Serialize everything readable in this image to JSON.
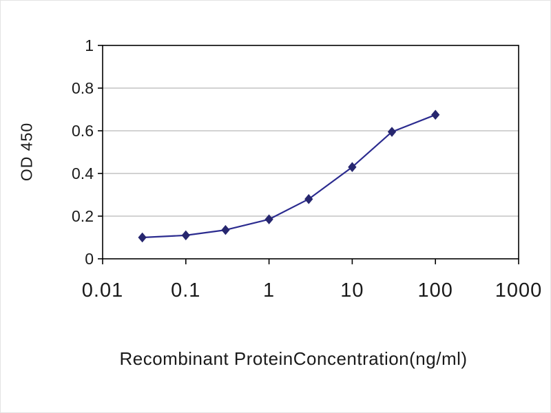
{
  "chart_data": {
    "type": "line",
    "title": "",
    "xlabel": "Recombinant ProteinConcentration(ng/ml)",
    "ylabel": "OD 450",
    "x_scale": "log",
    "xlim": [
      0.01,
      1000
    ],
    "ylim": [
      0,
      1
    ],
    "x_ticks": [
      0.01,
      0.1,
      1,
      10,
      100,
      1000
    ],
    "x_tick_labels": [
      "0.01",
      "0.1",
      "1",
      "10",
      "100",
      "1000"
    ],
    "y_ticks": [
      0,
      0.2,
      0.4,
      0.6,
      0.8,
      1
    ],
    "y_tick_labels": [
      "0",
      "0.2",
      "0.4",
      "0.6",
      "0.8",
      "1"
    ],
    "grid": "horizontal",
    "colors": {
      "line": "#2b2b8f",
      "marker": "#27276f",
      "grid": "#b8b8b8",
      "axis": "#000000",
      "text": "#1a1a1a"
    },
    "series": [
      {
        "name": "OD 450",
        "marker": "diamond",
        "x": [
          0.03,
          0.1,
          0.3,
          1,
          3,
          10,
          30,
          100
        ],
        "y": [
          0.1,
          0.11,
          0.135,
          0.185,
          0.28,
          0.43,
          0.595,
          0.675
        ]
      }
    ]
  }
}
